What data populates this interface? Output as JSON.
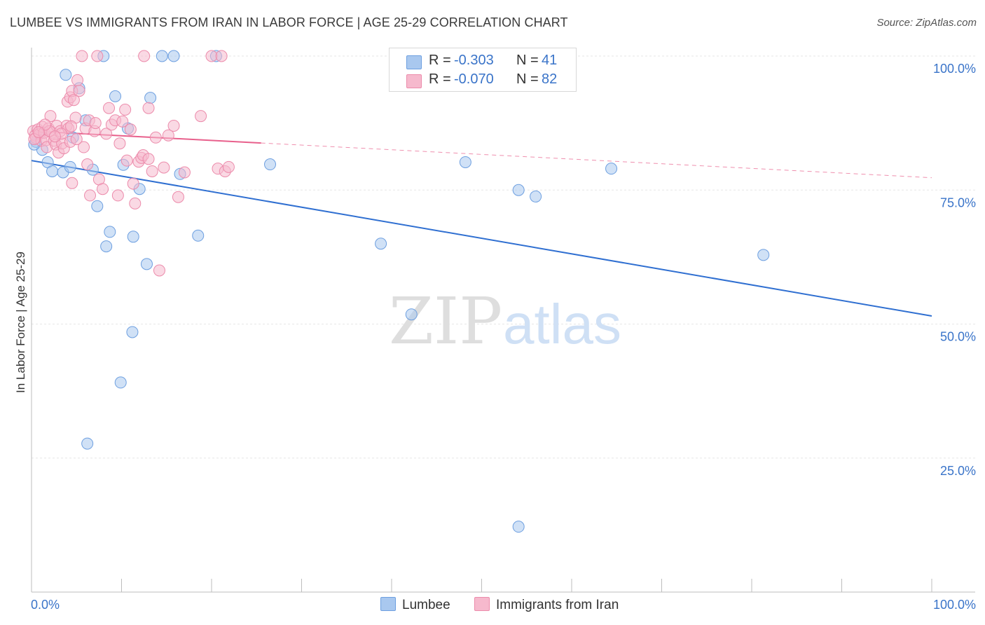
{
  "title": "LUMBEE VS IMMIGRANTS FROM IRAN IN LABOR FORCE | AGE 25-29 CORRELATION CHART",
  "source": "Source: ZipAtlas.com",
  "watermark": {
    "zip": "ZIP",
    "atlas": "atlas"
  },
  "stats": [
    {
      "r_label": "R =",
      "r_value": "-0.303",
      "n_label": "N =",
      "n_value": "41",
      "color": "#a9c8ef",
      "border": "#6d9fe0"
    },
    {
      "r_label": "R =",
      "r_value": "-0.070",
      "n_label": "N =",
      "n_value": "82",
      "color": "#f6b9cd",
      "border": "#ec8bab"
    }
  ],
  "legend": [
    {
      "label": "Lumbee",
      "color": "#a9c8ef",
      "border": "#6d9fe0"
    },
    {
      "label": "Immigrants from Iran",
      "color": "#f6b9cd",
      "border": "#ec8bab"
    }
  ],
  "chart_data": {
    "type": "scatter",
    "title": "LUMBEE VS IMMIGRANTS FROM IRAN IN LABOR FORCE | AGE 25-29 CORRELATION CHART",
    "xlabel": "",
    "ylabel": "In Labor Force | Age 25-29",
    "xlim": [
      0,
      100
    ],
    "ylim": [
      0,
      100
    ],
    "x_tick_labels": [
      "0.0%",
      "100.0%"
    ],
    "y_ticks": [
      25,
      50,
      75,
      100
    ],
    "y_tick_labels": [
      "25.0%",
      "50.0%",
      "75.0%",
      "100.0%"
    ],
    "grid": true,
    "series": [
      {
        "name": "Lumbee",
        "color": "#6d9fe0",
        "fill": "#a9c8ef",
        "line_color": "#2f6fd1",
        "trend": {
          "x0": 0,
          "y0": 80.5,
          "x1": 100,
          "y1": 51.5,
          "solid_to": 100
        },
        "points": [
          [
            0.5,
            84.0
          ],
          [
            0.9,
            85.5
          ],
          [
            1.2,
            82.5
          ],
          [
            1.8,
            80.2
          ],
          [
            2.3,
            78.5
          ],
          [
            3.5,
            78.3
          ],
          [
            4.3,
            79.3
          ],
          [
            3.8,
            96.5
          ],
          [
            4.6,
            84.8
          ],
          [
            5.3,
            94.0
          ],
          [
            6.0,
            88.0
          ],
          [
            6.8,
            78.8
          ],
          [
            7.3,
            72.0
          ],
          [
            8.0,
            100
          ],
          [
            8.3,
            64.5
          ],
          [
            8.7,
            67.2
          ],
          [
            9.3,
            92.5
          ],
          [
            10.2,
            79.7
          ],
          [
            10.7,
            86.5
          ],
          [
            11.3,
            66.3
          ],
          [
            12.0,
            75.2
          ],
          [
            12.8,
            61.2
          ],
          [
            13.2,
            92.2
          ],
          [
            14.5,
            100
          ],
          [
            15.8,
            100
          ],
          [
            16.5,
            78.0
          ],
          [
            18.5,
            66.5
          ],
          [
            20.5,
            100
          ],
          [
            26.5,
            79.8
          ],
          [
            11.2,
            48.5
          ],
          [
            9.9,
            39.1
          ],
          [
            6.2,
            27.7
          ],
          [
            38.8,
            65.0
          ],
          [
            42.2,
            51.8
          ],
          [
            48.2,
            80.2
          ],
          [
            54.1,
            75.0
          ],
          [
            56.0,
            73.8
          ],
          [
            64.4,
            79.0
          ],
          [
            81.3,
            62.9
          ],
          [
            54.1,
            12.2
          ],
          [
            0.3,
            83.5
          ]
        ]
      },
      {
        "name": "Immigrants from Iran",
        "color": "#ec8bab",
        "fill": "#f6b9cd",
        "line_color": "#e8608c",
        "trend": {
          "x0": 0,
          "y0": 86.0,
          "x1": 100,
          "y1": 77.3,
          "solid_to": 25.5
        },
        "points": [
          [
            0.2,
            86.0
          ],
          [
            0.4,
            85.2
          ],
          [
            0.5,
            84.7
          ],
          [
            0.7,
            86.3
          ],
          [
            0.9,
            85.5
          ],
          [
            1.1,
            84.2
          ],
          [
            1.2,
            86.8
          ],
          [
            1.4,
            85.7
          ],
          [
            1.6,
            84.3
          ],
          [
            1.7,
            83.0
          ],
          [
            1.9,
            86.5
          ],
          [
            2.1,
            88.8
          ],
          [
            2.3,
            85.7
          ],
          [
            2.5,
            84.2
          ],
          [
            2.7,
            83.5
          ],
          [
            2.8,
            87.0
          ],
          [
            3.0,
            82.0
          ],
          [
            3.2,
            86.0
          ],
          [
            3.4,
            83.7
          ],
          [
            3.6,
            82.8
          ],
          [
            3.9,
            87.0
          ],
          [
            4.1,
            86.5
          ],
          [
            4.3,
            84.0
          ],
          [
            4.5,
            76.3
          ],
          [
            4.0,
            91.5
          ],
          [
            4.3,
            92.3
          ],
          [
            4.5,
            93.5
          ],
          [
            4.7,
            91.8
          ],
          [
            4.9,
            88.5
          ],
          [
            5.1,
            95.5
          ],
          [
            5.3,
            93.5
          ],
          [
            5.6,
            100
          ],
          [
            5.8,
            83.0
          ],
          [
            6.0,
            86.5
          ],
          [
            6.2,
            79.8
          ],
          [
            6.4,
            88.0
          ],
          [
            6.5,
            74.0
          ],
          [
            7.0,
            86.0
          ],
          [
            7.3,
            100
          ],
          [
            7.1,
            87.5
          ],
          [
            7.5,
            77.0
          ],
          [
            7.9,
            75.2
          ],
          [
            8.3,
            85.5
          ],
          [
            8.6,
            90.3
          ],
          [
            8.9,
            87.2
          ],
          [
            9.3,
            88.0
          ],
          [
            9.6,
            74.0
          ],
          [
            9.8,
            83.7
          ],
          [
            10.1,
            87.8
          ],
          [
            10.4,
            90.0
          ],
          [
            10.6,
            80.5
          ],
          [
            11.0,
            86.3
          ],
          [
            11.3,
            76.2
          ],
          [
            11.5,
            72.5
          ],
          [
            11.9,
            80.3
          ],
          [
            12.2,
            81.0
          ],
          [
            12.5,
            100
          ],
          [
            13.0,
            90.3
          ],
          [
            13.4,
            78.5
          ],
          [
            13.8,
            84.8
          ],
          [
            14.2,
            60.0
          ],
          [
            14.7,
            79.2
          ],
          [
            15.2,
            85.2
          ],
          [
            15.8,
            87.0
          ],
          [
            16.3,
            73.7
          ],
          [
            17.0,
            78.3
          ],
          [
            18.8,
            88.8
          ],
          [
            20.0,
            100
          ],
          [
            20.7,
            79.0
          ],
          [
            21.1,
            100
          ],
          [
            21.5,
            78.5
          ],
          [
            21.9,
            79.3
          ],
          [
            3.3,
            85.5
          ],
          [
            2.0,
            86.0
          ],
          [
            0.3,
            84.5
          ],
          [
            1.5,
            87.2
          ],
          [
            12.4,
            81.5
          ],
          [
            13.0,
            80.8
          ],
          [
            0.8,
            85.8
          ],
          [
            2.6,
            85.0
          ],
          [
            4.4,
            86.9
          ],
          [
            5.0,
            84.5
          ]
        ]
      }
    ]
  }
}
